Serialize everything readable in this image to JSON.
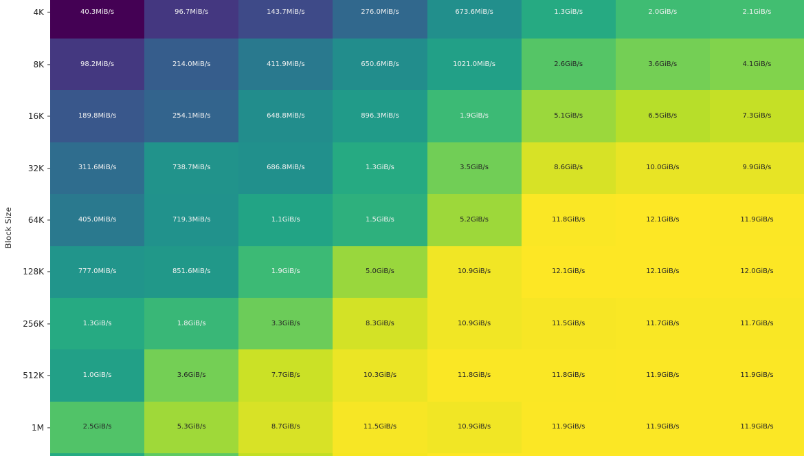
{
  "chart_data": {
    "type": "heatmap",
    "title": "",
    "xlabel": "",
    "ylabel": "Block Size",
    "colormap": "viridis",
    "color_scale": "log",
    "legend": "none",
    "grid": "off",
    "columns": 8,
    "y_categories": [
      "4K",
      "8K",
      "16K",
      "32K",
      "64K",
      "128K",
      "256K",
      "512K",
      "1M"
    ],
    "cell_labels": [
      [
        "40.3MiB/s",
        "96.7MiB/s",
        "143.7MiB/s",
        "276.0MiB/s",
        "673.6MiB/s",
        "1.3GiB/s",
        "2.0GiB/s",
        "2.1GiB/s"
      ],
      [
        "98.2MiB/s",
        "214.0MiB/s",
        "411.9MiB/s",
        "650.6MiB/s",
        "1021.0MiB/s",
        "2.6GiB/s",
        "3.6GiB/s",
        "4.1GiB/s"
      ],
      [
        "189.8MiB/s",
        "254.1MiB/s",
        "648.8MiB/s",
        "896.3MiB/s",
        "1.9GiB/s",
        "5.1GiB/s",
        "6.5GiB/s",
        "7.3GiB/s"
      ],
      [
        "311.6MiB/s",
        "738.7MiB/s",
        "686.8MiB/s",
        "1.3GiB/s",
        "3.5GiB/s",
        "8.6GiB/s",
        "10.0GiB/s",
        "9.9GiB/s"
      ],
      [
        "405.0MiB/s",
        "719.3MiB/s",
        "1.1GiB/s",
        "1.5GiB/s",
        "5.2GiB/s",
        "11.8GiB/s",
        "12.1GiB/s",
        "11.9GiB/s"
      ],
      [
        "777.0MiB/s",
        "851.6MiB/s",
        "1.9GiB/s",
        "5.0GiB/s",
        "10.9GiB/s",
        "12.1GiB/s",
        "12.1GiB/s",
        "12.0GiB/s"
      ],
      [
        "1.3GiB/s",
        "1.8GiB/s",
        "3.3GiB/s",
        "8.3GiB/s",
        "10.9GiB/s",
        "11.5GiB/s",
        "11.7GiB/s",
        "11.7GiB/s"
      ],
      [
        "1.0GiB/s",
        "3.6GiB/s",
        "7.7GiB/s",
        "10.3GiB/s",
        "11.8GiB/s",
        "11.8GiB/s",
        "11.9GiB/s",
        "11.9GiB/s"
      ],
      [
        "2.5GiB/s",
        "5.3GiB/s",
        "8.7GiB/s",
        "11.5GiB/s",
        "10.9GiB/s",
        "11.9GiB/s",
        "11.9GiB/s",
        "11.9GiB/s"
      ]
    ],
    "values_mib_s": [
      [
        40.3,
        96.7,
        143.7,
        276.0,
        673.6,
        1331.2,
        2048.0,
        2150.4
      ],
      [
        98.2,
        214.0,
        411.9,
        650.6,
        1021.0,
        2662.4,
        3686.4,
        4198.4
      ],
      [
        189.8,
        254.1,
        648.8,
        896.3,
        1945.6,
        5222.4,
        6656.0,
        7475.2
      ],
      [
        311.6,
        738.7,
        686.8,
        1331.2,
        3584.0,
        8806.4,
        10240.0,
        10137.6
      ],
      [
        405.0,
        719.3,
        1126.4,
        1536.0,
        5324.8,
        12083.2,
        12390.4,
        12185.6
      ],
      [
        777.0,
        851.6,
        1945.6,
        5120.0,
        11161.6,
        12390.4,
        12390.4,
        12288.0
      ],
      [
        1331.2,
        1843.2,
        3379.2,
        8499.2,
        11161.6,
        11776.0,
        11980.8,
        11980.8
      ],
      [
        1024.0,
        3686.4,
        7884.8,
        10547.2,
        12083.2,
        12083.2,
        12185.6,
        12185.6
      ],
      [
        2560.0,
        5427.2,
        8908.8,
        11776.0,
        11161.6,
        12185.6,
        12185.6,
        12185.6
      ]
    ],
    "vmin_mib_s": 40.3,
    "vmax_mib_s": 12390.4,
    "partial_bottom_row_colors": [
      "#25ab82",
      "#5ec962",
      "#c2df23",
      "#f6e620",
      "#fde725",
      "#fde725",
      "#fde725",
      "#fde725"
    ],
    "colors": {
      "background": "#ffffff",
      "annotation_dark": "#262626",
      "annotation_light": "#f2f2f2",
      "tick_text": "#262626",
      "cmap_min": "#440154",
      "cmap_max": "#fde725"
    }
  }
}
